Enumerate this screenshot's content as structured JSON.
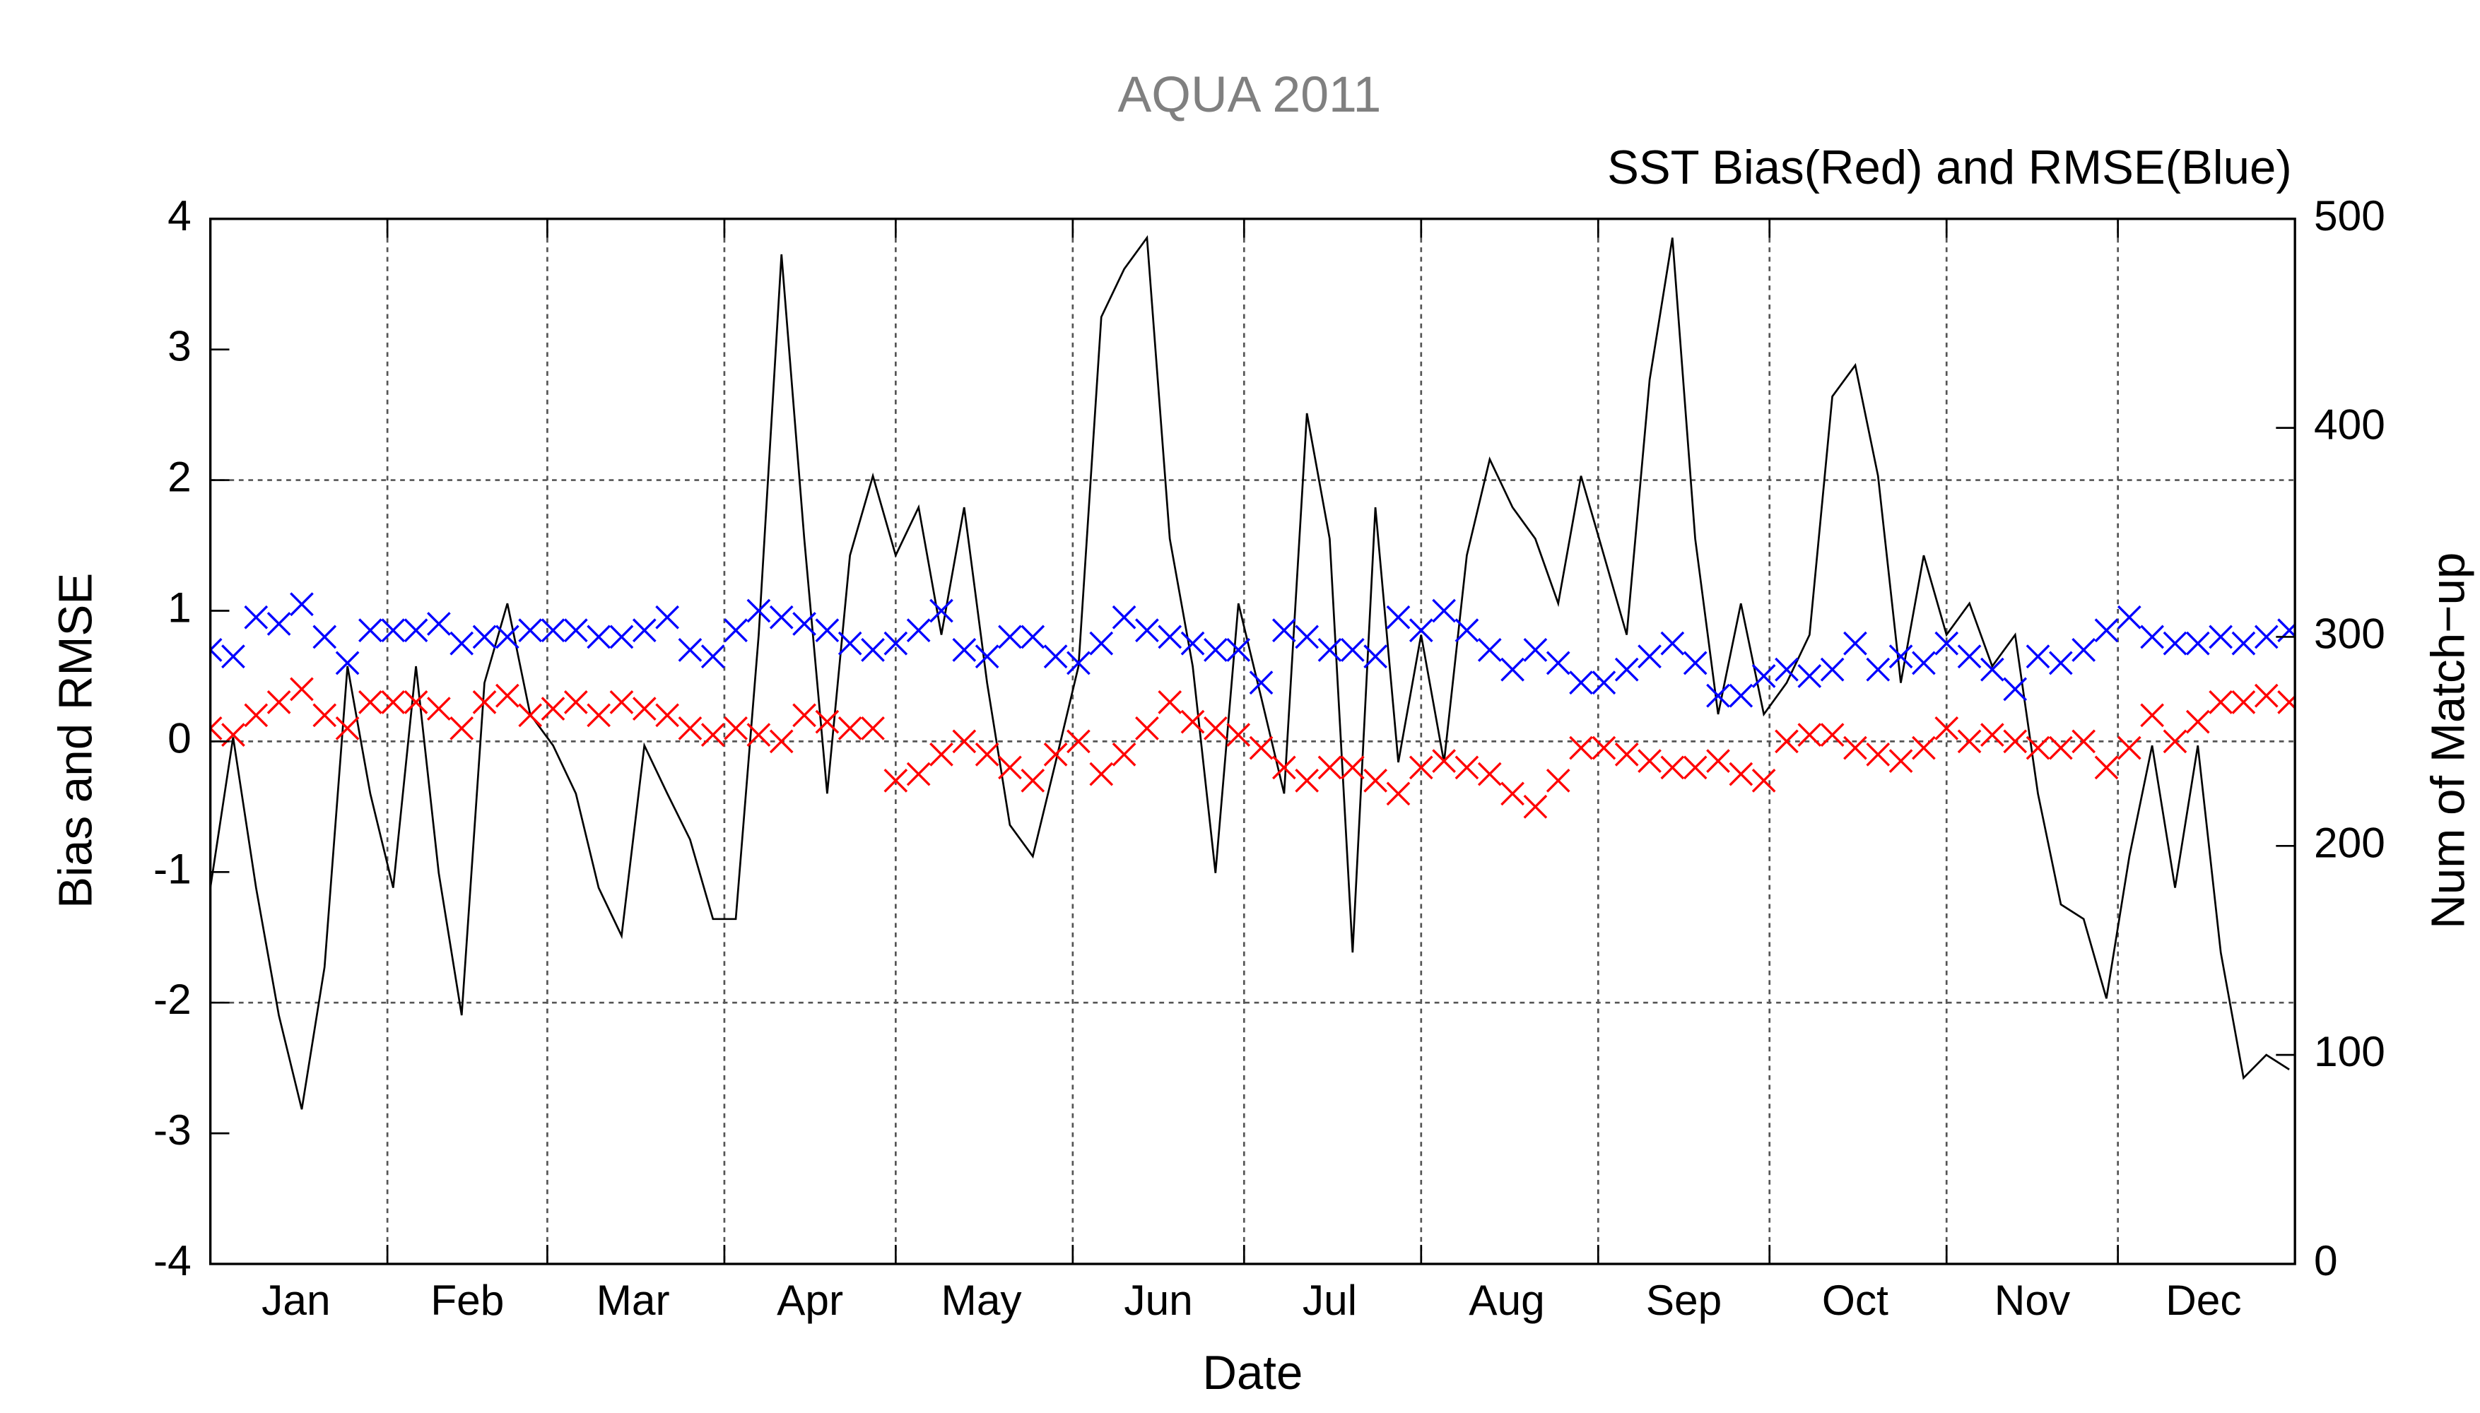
{
  "chart_data": {
    "type": "line",
    "title": "AQUA 2011",
    "subtitle": "SST Bias(Red) and RMSE(Blue)",
    "x_label": "Date",
    "y_label": "Bias and RMSE",
    "y2_label": "Num of Match−up",
    "x": [
      1,
      5,
      9,
      13,
      17,
      21,
      25,
      29,
      33,
      37,
      41,
      45,
      49,
      53,
      57,
      61,
      65,
      69,
      73,
      77,
      81,
      85,
      89,
      93,
      97,
      101,
      105,
      109,
      113,
      117,
      121,
      125,
      129,
      133,
      137,
      141,
      145,
      149,
      153,
      157,
      161,
      165,
      169,
      173,
      177,
      181,
      185,
      189,
      193,
      197,
      201,
      205,
      209,
      213,
      217,
      221,
      225,
      229,
      233,
      237,
      241,
      245,
      249,
      253,
      257,
      261,
      265,
      269,
      273,
      277,
      281,
      285,
      289,
      293,
      297,
      301,
      305,
      309,
      313,
      317,
      321,
      325,
      329,
      333,
      337,
      341,
      345,
      349,
      353,
      357,
      361,
      365
    ],
    "xlim": [
      1,
      366
    ],
    "xticks": [
      {
        "value": 16,
        "label": "Jan"
      },
      {
        "value": 46,
        "label": "Feb"
      },
      {
        "value": 75,
        "label": "Mar"
      },
      {
        "value": 106,
        "label": "Apr"
      },
      {
        "value": 136,
        "label": "May"
      },
      {
        "value": 167,
        "label": "Jun"
      },
      {
        "value": 197,
        "label": "Jul"
      },
      {
        "value": 228,
        "label": "Aug"
      },
      {
        "value": 259,
        "label": "Sep"
      },
      {
        "value": 289,
        "label": "Oct"
      },
      {
        "value": 320,
        "label": "Nov"
      },
      {
        "value": 350,
        "label": "Dec"
      }
    ],
    "xgrid": [
      32,
      60,
      91,
      121,
      152,
      182,
      213,
      244,
      274,
      305,
      335
    ],
    "ylim": [
      -4,
      4
    ],
    "yticks": [
      -4,
      -3,
      -2,
      -1,
      0,
      1,
      2,
      3,
      4
    ],
    "ygrid": [
      -2,
      0,
      2
    ],
    "y2lim": [
      0,
      500
    ],
    "y2ticks": [
      0,
      100,
      200,
      300,
      400,
      500
    ],
    "series": [
      {
        "color": "#ff0000",
        "marker": "x",
        "values": [
          0.1,
          0.05,
          0.2,
          0.3,
          0.4,
          0.2,
          0.1,
          0.3,
          0.3,
          0.3,
          0.25,
          0.1,
          0.3,
          0.35,
          0.2,
          0.25,
          0.3,
          0.2,
          0.3,
          0.25,
          0.2,
          0.1,
          0.05,
          0.1,
          0.05,
          0.0,
          0.2,
          0.15,
          0.1,
          0.1,
          -0.3,
          -0.25,
          -0.1,
          0.0,
          -0.1,
          -0.2,
          -0.3,
          -0.1,
          0.0,
          -0.25,
          -0.1,
          0.1,
          0.3,
          0.15,
          0.1,
          0.05,
          -0.05,
          -0.2,
          -0.3,
          -0.2,
          -0.2,
          -0.3,
          -0.4,
          -0.2,
          -0.15,
          -0.2,
          -0.25,
          -0.4,
          -0.5,
          -0.3,
          -0.05,
          -0.05,
          -0.1,
          -0.15,
          -0.2,
          -0.2,
          -0.15,
          -0.25,
          -0.3,
          0.0,
          0.05,
          0.05,
          -0.05,
          -0.1,
          -0.15,
          -0.05,
          0.1,
          0.0,
          0.05,
          0.0,
          -0.05,
          -0.05,
          0.0,
          -0.2,
          -0.05,
          0.2,
          0.0,
          0.15,
          0.3,
          0.3,
          0.35,
          0.3
        ]
      },
      {
        "color": "#0000ff",
        "marker": "x",
        "values": [
          0.7,
          0.65,
          0.95,
          0.9,
          1.05,
          0.8,
          0.6,
          0.85,
          0.85,
          0.85,
          0.9,
          0.75,
          0.8,
          0.8,
          0.85,
          0.85,
          0.85,
          0.8,
          0.8,
          0.85,
          0.95,
          0.7,
          0.65,
          0.85,
          1.0,
          0.95,
          0.9,
          0.85,
          0.75,
          0.7,
          0.75,
          0.85,
          1.0,
          0.7,
          0.65,
          0.8,
          0.8,
          0.65,
          0.6,
          0.75,
          0.95,
          0.85,
          0.8,
          0.75,
          0.7,
          0.7,
          0.45,
          0.85,
          0.8,
          0.7,
          0.7,
          0.65,
          0.95,
          0.85,
          1.0,
          0.85,
          0.7,
          0.55,
          0.7,
          0.6,
          0.45,
          0.45,
          0.55,
          0.65,
          0.75,
          0.6,
          0.35,
          0.35,
          0.5,
          0.55,
          0.5,
          0.55,
          0.75,
          0.55,
          0.65,
          0.6,
          0.75,
          0.65,
          0.55,
          0.4,
          0.65,
          0.6,
          0.7,
          0.85,
          0.95,
          0.8,
          0.75,
          0.75,
          0.8,
          0.75,
          0.8,
          0.85
        ]
      },
      {
        "color": "#000000",
        "marker": "line",
        "axis": "y2",
        "values": [
          180,
          252,
          180,
          119,
          74,
          142,
          286,
          225,
          180,
          286,
          187,
          119,
          278,
          316,
          263,
          248,
          225,
          180,
          157,
          248,
          225,
          203,
          165,
          165,
          301,
          483,
          347,
          225,
          339,
          377,
          339,
          362,
          301,
          362,
          278,
          210,
          195,
          240,
          286,
          453,
          476,
          491,
          347,
          286,
          187,
          316,
          271,
          225,
          407,
          347,
          149,
          362,
          240,
          301,
          240,
          339,
          385,
          362,
          347,
          316,
          377,
          339,
          301,
          423,
          491,
          347,
          263,
          316,
          263,
          278,
          301,
          415,
          430,
          377,
          278,
          339,
          301,
          316,
          286,
          301,
          225,
          172,
          165,
          127,
          195,
          248,
          180,
          248,
          149,
          89,
          100,
          93
        ]
      }
    ]
  }
}
